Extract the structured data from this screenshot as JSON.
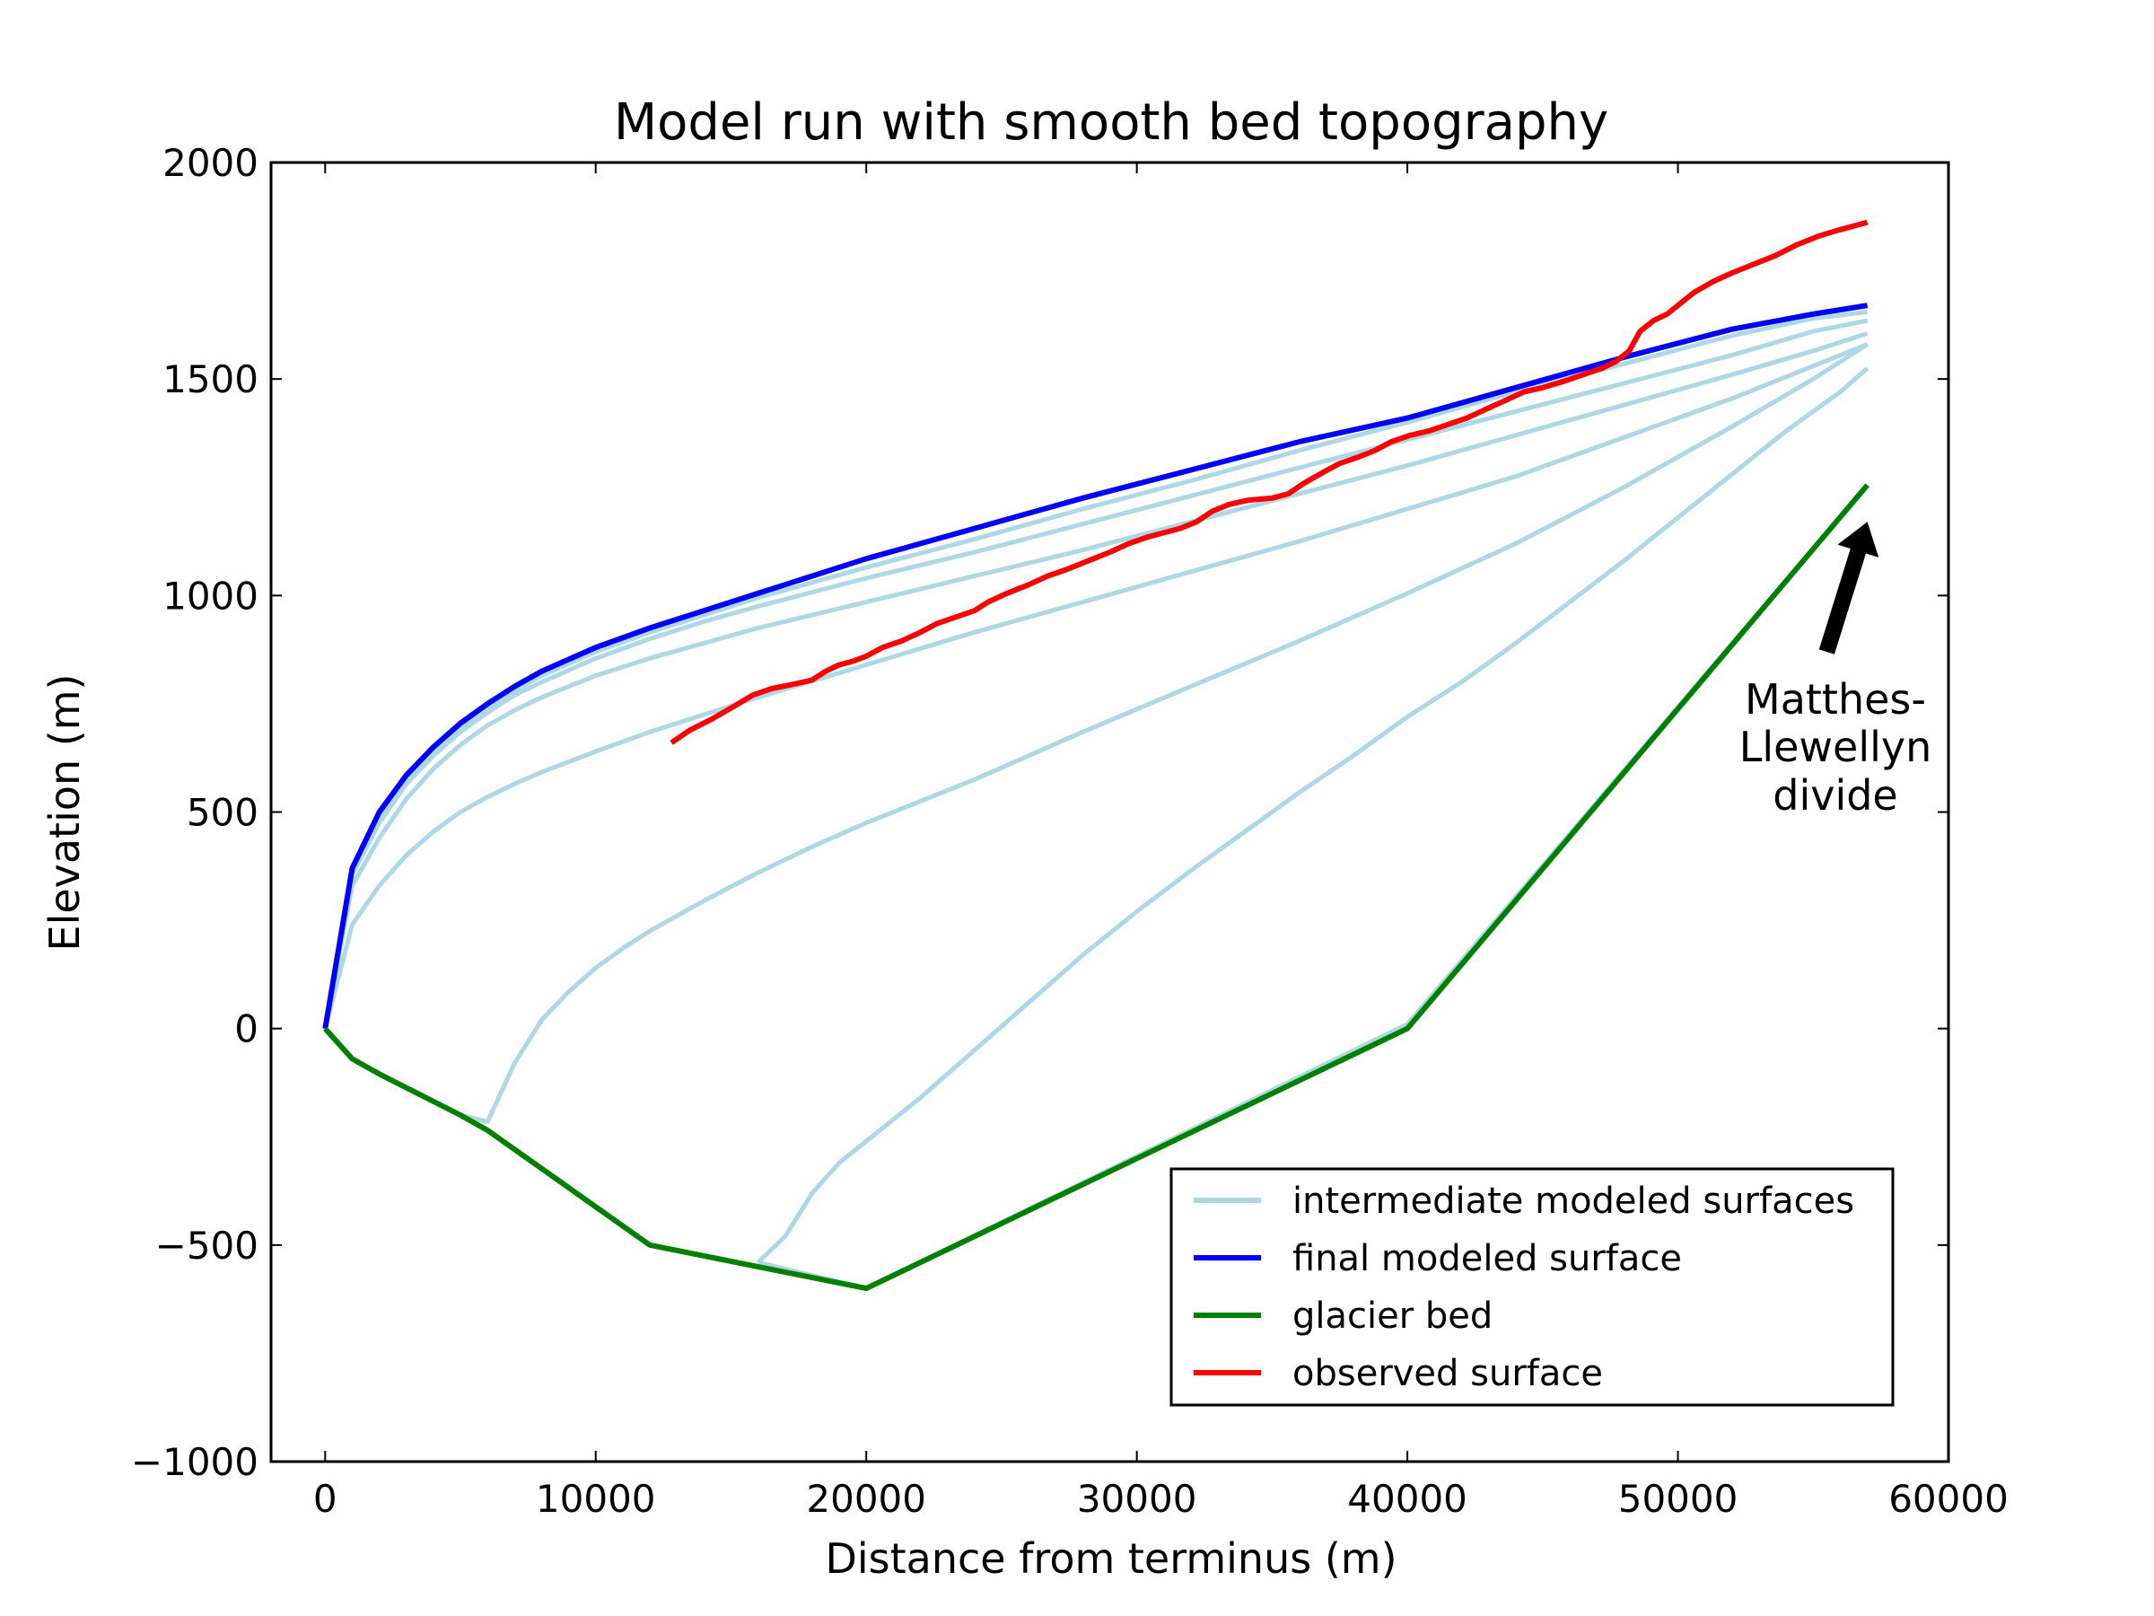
{
  "chart_data": {
    "type": "line",
    "title": "Model run with smooth bed topography",
    "xlabel": "Distance from terminus (m)",
    "ylabel": "Elevation (m)",
    "xlim": [
      -2000,
      60000
    ],
    "ylim": [
      -1000,
      2000
    ],
    "xticks": [
      0,
      10000,
      20000,
      30000,
      40000,
      50000,
      60000
    ],
    "xtick_labels": [
      "0",
      "10000",
      "20000",
      "30000",
      "40000",
      "50000",
      "60000"
    ],
    "yticks": [
      -1000,
      -500,
      0,
      500,
      1000,
      1500,
      2000
    ],
    "ytick_labels": [
      "−1000",
      "−500",
      "0",
      "500",
      "1000",
      "1500",
      "2000"
    ],
    "grid": false,
    "legend_position": "lower-right",
    "legend": [
      {
        "label": "intermediate modeled surfaces",
        "color": "#add8e6"
      },
      {
        "label": "final modeled surface",
        "color": "#0000ff"
      },
      {
        "label": "glacier bed",
        "color": "#008000"
      },
      {
        "label": "observed surface",
        "color": "#ff0000"
      }
    ],
    "annotation": {
      "lines": [
        "Matthes-",
        "Llewellyn",
        "divide"
      ],
      "arrow_from": [
        55500,
        870
      ],
      "arrow_to": [
        57000,
        1170
      ]
    },
    "series": [
      {
        "role": "intermediate",
        "color": "#add8e6",
        "points": [
          [
            57000,
            1255
          ],
          [
            40000,
            10
          ],
          [
            20000,
            -600
          ],
          [
            16000,
            -540
          ]
        ]
      },
      {
        "role": "intermediate",
        "color": "#add8e6",
        "points": [
          [
            16000,
            -540
          ],
          [
            17000,
            -480
          ],
          [
            18000,
            -380
          ],
          [
            19000,
            -310
          ],
          [
            20000,
            -260
          ],
          [
            22000,
            -160
          ],
          [
            24000,
            -50
          ],
          [
            26000,
            60
          ],
          [
            28000,
            170
          ],
          [
            30000,
            270
          ],
          [
            32000,
            365
          ],
          [
            34000,
            455
          ],
          [
            36000,
            545
          ],
          [
            38000,
            630
          ],
          [
            40000,
            720
          ],
          [
            42000,
            800
          ],
          [
            44000,
            890
          ],
          [
            46000,
            985
          ],
          [
            48000,
            1080
          ],
          [
            50000,
            1180
          ],
          [
            52000,
            1280
          ],
          [
            54000,
            1380
          ],
          [
            56000,
            1470
          ],
          [
            57000,
            1525
          ]
        ]
      },
      {
        "role": "intermediate",
        "color": "#add8e6",
        "points": [
          [
            5000,
            -200
          ],
          [
            6000,
            -215
          ],
          [
            7000,
            -80
          ],
          [
            8000,
            20
          ],
          [
            9000,
            85
          ],
          [
            10000,
            140
          ],
          [
            11000,
            185
          ],
          [
            12000,
            225
          ],
          [
            14000,
            295
          ],
          [
            16000,
            360
          ],
          [
            18000,
            420
          ],
          [
            20000,
            475
          ],
          [
            24000,
            575
          ],
          [
            28000,
            685
          ],
          [
            32000,
            790
          ],
          [
            36000,
            895
          ],
          [
            40000,
            1005
          ],
          [
            44000,
            1120
          ],
          [
            48000,
            1250
          ],
          [
            52000,
            1390
          ],
          [
            55000,
            1500
          ],
          [
            57000,
            1580
          ]
        ]
      },
      {
        "role": "intermediate",
        "color": "#add8e6",
        "points": [
          [
            0,
            0
          ],
          [
            1000,
            240
          ],
          [
            2000,
            330
          ],
          [
            3000,
            400
          ],
          [
            4000,
            455
          ],
          [
            5000,
            500
          ],
          [
            6000,
            535
          ],
          [
            7000,
            565
          ],
          [
            8000,
            592
          ],
          [
            10000,
            640
          ],
          [
            12000,
            685
          ],
          [
            14000,
            725
          ],
          [
            16000,
            765
          ],
          [
            20000,
            840
          ],
          [
            24000,
            915
          ],
          [
            28000,
            985
          ],
          [
            32000,
            1055
          ],
          [
            36000,
            1125
          ],
          [
            40000,
            1200
          ],
          [
            44000,
            1275
          ],
          [
            48000,
            1365
          ],
          [
            52000,
            1455
          ],
          [
            55000,
            1530
          ],
          [
            57000,
            1580
          ]
        ]
      },
      {
        "role": "intermediate",
        "color": "#add8e6",
        "points": [
          [
            0,
            0
          ],
          [
            1000,
            330
          ],
          [
            2000,
            440
          ],
          [
            3000,
            530
          ],
          [
            4000,
            600
          ],
          [
            5000,
            655
          ],
          [
            6000,
            700
          ],
          [
            7000,
            735
          ],
          [
            8000,
            765
          ],
          [
            10000,
            815
          ],
          [
            12000,
            855
          ],
          [
            14000,
            890
          ],
          [
            16000,
            925
          ],
          [
            20000,
            985
          ],
          [
            24000,
            1045
          ],
          [
            28000,
            1105
          ],
          [
            32000,
            1170
          ],
          [
            36000,
            1235
          ],
          [
            40000,
            1300
          ],
          [
            44000,
            1370
          ],
          [
            48000,
            1440
          ],
          [
            52000,
            1510
          ],
          [
            55000,
            1565
          ],
          [
            57000,
            1605
          ]
        ]
      },
      {
        "role": "intermediate",
        "color": "#add8e6",
        "points": [
          [
            0,
            0
          ],
          [
            1000,
            355
          ],
          [
            2000,
            475
          ],
          [
            3000,
            565
          ],
          [
            4000,
            630
          ],
          [
            5000,
            685
          ],
          [
            6000,
            730
          ],
          [
            7000,
            770
          ],
          [
            8000,
            800
          ],
          [
            10000,
            855
          ],
          [
            12000,
            900
          ],
          [
            14000,
            940
          ],
          [
            16000,
            975
          ],
          [
            20000,
            1040
          ],
          [
            24000,
            1100
          ],
          [
            28000,
            1165
          ],
          [
            32000,
            1230
          ],
          [
            36000,
            1295
          ],
          [
            40000,
            1360
          ],
          [
            44000,
            1425
          ],
          [
            48000,
            1490
          ],
          [
            52000,
            1555
          ],
          [
            55000,
            1610
          ],
          [
            57000,
            1635
          ]
        ]
      },
      {
        "role": "intermediate",
        "color": "#add8e6",
        "points": [
          [
            0,
            0
          ],
          [
            1000,
            365
          ],
          [
            2000,
            490
          ],
          [
            3000,
            575
          ],
          [
            4000,
            640
          ],
          [
            5000,
            695
          ],
          [
            6000,
            740
          ],
          [
            7000,
            780
          ],
          [
            8000,
            815
          ],
          [
            10000,
            870
          ],
          [
            12000,
            915
          ],
          [
            14000,
            955
          ],
          [
            16000,
            995
          ],
          [
            20000,
            1065
          ],
          [
            24000,
            1130
          ],
          [
            28000,
            1200
          ],
          [
            32000,
            1265
          ],
          [
            36000,
            1335
          ],
          [
            40000,
            1400
          ],
          [
            44000,
            1470
          ],
          [
            48000,
            1535
          ],
          [
            52000,
            1600
          ],
          [
            55000,
            1640
          ],
          [
            57000,
            1655
          ]
        ]
      },
      {
        "role": "final",
        "color": "#0000ff",
        "points": [
          [
            0,
            0
          ],
          [
            1000,
            370
          ],
          [
            2000,
            500
          ],
          [
            3000,
            585
          ],
          [
            4000,
            650
          ],
          [
            5000,
            705
          ],
          [
            6000,
            750
          ],
          [
            7000,
            790
          ],
          [
            8000,
            825
          ],
          [
            10000,
            880
          ],
          [
            12000,
            925
          ],
          [
            14000,
            965
          ],
          [
            16000,
            1005
          ],
          [
            20000,
            1085
          ],
          [
            24000,
            1155
          ],
          [
            28000,
            1225
          ],
          [
            32000,
            1290
          ],
          [
            36000,
            1355
          ],
          [
            40000,
            1410
          ],
          [
            44000,
            1480
          ],
          [
            48000,
            1550
          ],
          [
            52000,
            1615
          ],
          [
            55000,
            1650
          ],
          [
            57000,
            1670
          ]
        ]
      },
      {
        "role": "observed",
        "color": "#ff0000",
        "points": [
          [
            12800,
            660
          ],
          [
            13500,
            690
          ],
          [
            14300,
            715
          ],
          [
            15000,
            740
          ],
          [
            15800,
            770
          ],
          [
            16500,
            785
          ],
          [
            17300,
            795
          ],
          [
            18000,
            805
          ],
          [
            18500,
            825
          ],
          [
            19000,
            840
          ],
          [
            19500,
            848
          ],
          [
            20000,
            860
          ],
          [
            20600,
            880
          ],
          [
            21300,
            895
          ],
          [
            22000,
            915
          ],
          [
            22600,
            935
          ],
          [
            23300,
            950
          ],
          [
            24000,
            965
          ],
          [
            24500,
            985
          ],
          [
            25200,
            1005
          ],
          [
            26000,
            1025
          ],
          [
            26700,
            1045
          ],
          [
            27400,
            1060
          ],
          [
            28200,
            1080
          ],
          [
            29000,
            1100
          ],
          [
            29700,
            1120
          ],
          [
            30400,
            1135
          ],
          [
            31000,
            1145
          ],
          [
            31600,
            1155
          ],
          [
            32200,
            1170
          ],
          [
            32800,
            1195
          ],
          [
            33400,
            1210
          ],
          [
            34100,
            1220
          ],
          [
            35000,
            1225
          ],
          [
            35600,
            1235
          ],
          [
            36200,
            1260
          ],
          [
            36900,
            1285
          ],
          [
            37500,
            1305
          ],
          [
            38200,
            1320
          ],
          [
            38800,
            1335
          ],
          [
            39400,
            1355
          ],
          [
            40100,
            1370
          ],
          [
            40800,
            1380
          ],
          [
            41500,
            1395
          ],
          [
            42200,
            1410
          ],
          [
            42900,
            1430
          ],
          [
            43600,
            1450
          ],
          [
            44300,
            1470
          ],
          [
            45000,
            1480
          ],
          [
            45800,
            1495
          ],
          [
            46500,
            1510
          ],
          [
            47200,
            1525
          ],
          [
            47700,
            1540
          ],
          [
            48200,
            1565
          ],
          [
            48600,
            1610
          ],
          [
            49100,
            1635
          ],
          [
            49600,
            1650
          ],
          [
            50000,
            1670
          ],
          [
            50600,
            1700
          ],
          [
            51300,
            1725
          ],
          [
            52000,
            1745
          ],
          [
            52800,
            1765
          ],
          [
            53600,
            1785
          ],
          [
            54400,
            1810
          ],
          [
            55200,
            1830
          ],
          [
            56000,
            1845
          ],
          [
            57000,
            1862
          ]
        ]
      },
      {
        "role": "bed",
        "color": "#008000",
        "points": [
          [
            0,
            0
          ],
          [
            1000,
            -70
          ],
          [
            2000,
            -105
          ],
          [
            5000,
            -200
          ],
          [
            6000,
            -235
          ],
          [
            12000,
            -500
          ],
          [
            20000,
            -600
          ],
          [
            40000,
            0
          ],
          [
            57000,
            1255
          ]
        ]
      }
    ]
  }
}
